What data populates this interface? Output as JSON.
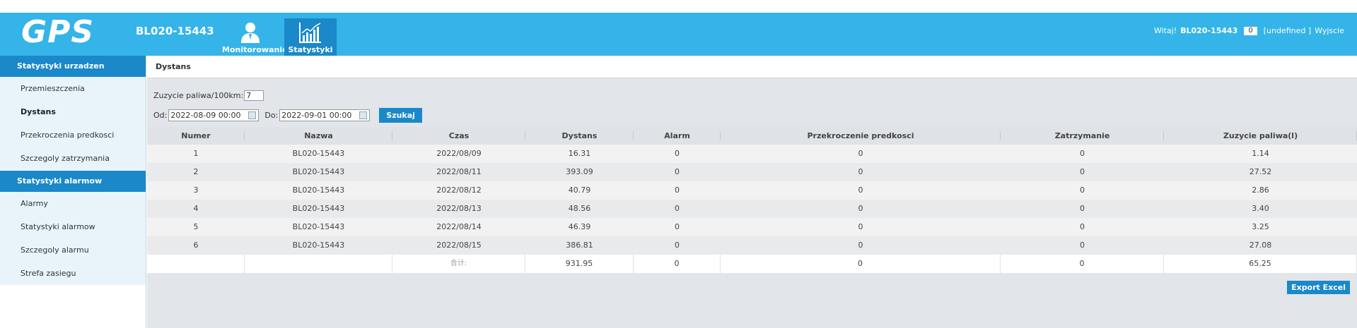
{
  "header": {
    "logo": "GPS",
    "device_id": "BL020-15443",
    "nav": [
      {
        "label": "Monitorowanie",
        "icon": "person-icon"
      },
      {
        "label": "Statystyki",
        "icon": "chart-icon"
      }
    ],
    "welcome": {
      "greeting": "Witaj!",
      "user": "BL020-15443",
      "count": "0",
      "extra": "[undefined ]",
      "logout": "Wyjscie"
    }
  },
  "sidebar": {
    "section1": "Statystyki urzadzen",
    "items1": [
      "Przemieszczenia",
      "Dystans",
      "Przekroczenia predkosci",
      "Szczegoly zatrzymania"
    ],
    "section2": "Statystyki alarmow",
    "items2": [
      "Alarmy",
      "Statystyki alarmow",
      "Szczegoly alarmu",
      "Strefa zasiegu"
    ]
  },
  "main": {
    "title": "Dystans",
    "fuel_label": "Zuzycie paliwa/100km:",
    "fuel_value": "7",
    "from_label": "Od:",
    "from_value": "2022-08-09 00:00",
    "to_label": "Do:",
    "to_value": "2022-09-01 00:00",
    "search_label": "Szukaj",
    "export_label": "Export Excel"
  },
  "table": {
    "headers": [
      "Numer",
      "Nazwa",
      "Czas",
      "Dystans",
      "Alarm",
      "Przekroczenie predkosci",
      "Zatrzymanie",
      "Zuzycie paliwa(l)"
    ],
    "rows": [
      [
        "1",
        "BL020-15443",
        "2022/08/09",
        "16.31",
        "0",
        "0",
        "0",
        "1.14"
      ],
      [
        "2",
        "BL020-15443",
        "2022/08/11",
        "393.09",
        "0",
        "0",
        "0",
        "27.52"
      ],
      [
        "3",
        "BL020-15443",
        "2022/08/12",
        "40.79",
        "0",
        "0",
        "0",
        "2.86"
      ],
      [
        "4",
        "BL020-15443",
        "2022/08/13",
        "48.56",
        "0",
        "0",
        "0",
        "3.40"
      ],
      [
        "5",
        "BL020-15443",
        "2022/08/14",
        "46.39",
        "0",
        "0",
        "0",
        "3.25"
      ],
      [
        "6",
        "BL020-15443",
        "2022/08/15",
        "386.81",
        "0",
        "0",
        "0",
        "27.08"
      ]
    ],
    "sum": [
      "",
      "",
      "合计:",
      "931.95",
      "0",
      "0",
      "0",
      "65.25"
    ]
  },
  "colors": {
    "header_blue": "#34b4e8",
    "active_blue": "#1a88c9",
    "sidebar_bg": "#e8f4fa"
  }
}
